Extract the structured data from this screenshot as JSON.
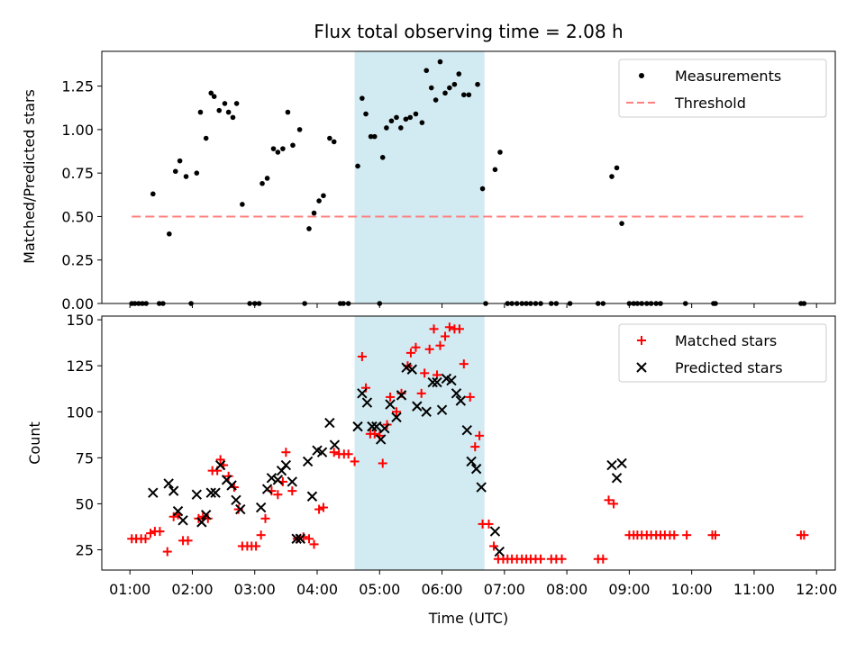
{
  "chart_data": {
    "title": "Flux total observing time = 2.08 h",
    "xlabel": "Time (UTC)",
    "x_unit": "hours UTC",
    "xlim": [
      0.55,
      12.3
    ],
    "xticks": [
      {
        "v": 1,
        "label": "01:00"
      },
      {
        "v": 2,
        "label": "02:00"
      },
      {
        "v": 3,
        "label": "03:00"
      },
      {
        "v": 4,
        "label": "04:00"
      },
      {
        "v": 5,
        "label": "05:00"
      },
      {
        "v": 6,
        "label": "06:00"
      },
      {
        "v": 7,
        "label": "07:00"
      },
      {
        "v": 8,
        "label": "08:00"
      },
      {
        "v": 9,
        "label": "09:00"
      },
      {
        "v": 10,
        "label": "10:00"
      },
      {
        "v": 11,
        "label": "11:00"
      },
      {
        "v": 12,
        "label": "12:00"
      }
    ],
    "observing_window": {
      "start": 4.6,
      "end": 6.68,
      "color": "#add8e6"
    },
    "top": {
      "type": "scatter",
      "ylabel": "Matched/Predicted stars",
      "ylim": [
        0,
        1.45
      ],
      "yticks": [
        {
          "v": 0,
          "label": "0.00"
        },
        {
          "v": 0.25,
          "label": "0.25"
        },
        {
          "v": 0.5,
          "label": "0.50"
        },
        {
          "v": 0.75,
          "label": "0.75"
        },
        {
          "v": 1.0,
          "label": "1.00"
        },
        {
          "v": 1.25,
          "label": "1.25"
        }
      ],
      "legend": [
        {
          "label": "Measurements",
          "kind": "dot",
          "color": "#000000"
        },
        {
          "label": "Threshold",
          "kind": "dash",
          "color": "#ff7f7f"
        }
      ],
      "threshold": {
        "y": 0.5,
        "x_start": 1.03,
        "x_end": 11.8,
        "color": "#ff7f7f"
      },
      "measurements": [
        [
          1.03,
          0
        ],
        [
          1.08,
          0
        ],
        [
          1.14,
          0
        ],
        [
          1.2,
          0
        ],
        [
          1.26,
          0
        ],
        [
          1.37,
          0.63
        ],
        [
          1.47,
          0
        ],
        [
          1.53,
          0
        ],
        [
          1.63,
          0.4
        ],
        [
          1.73,
          0.76
        ],
        [
          1.8,
          0.82
        ],
        [
          1.9,
          0.73
        ],
        [
          1.98,
          0
        ],
        [
          2.07,
          0.75
        ],
        [
          2.13,
          1.1
        ],
        [
          2.22,
          0.95
        ],
        [
          2.3,
          1.21
        ],
        [
          2.35,
          1.19
        ],
        [
          2.43,
          1.11
        ],
        [
          2.52,
          1.15
        ],
        [
          2.58,
          1.1
        ],
        [
          2.65,
          1.07
        ],
        [
          2.71,
          1.15
        ],
        [
          2.8,
          0.57
        ],
        [
          2.92,
          0
        ],
        [
          3.0,
          0
        ],
        [
          3.07,
          0
        ],
        [
          3.12,
          0.69
        ],
        [
          3.2,
          0.72
        ],
        [
          3.3,
          0.89
        ],
        [
          3.37,
          0.87
        ],
        [
          3.45,
          0.89
        ],
        [
          3.53,
          1.1
        ],
        [
          3.61,
          0.91
        ],
        [
          3.72,
          1.0
        ],
        [
          3.8,
          0
        ],
        [
          3.87,
          0.43
        ],
        [
          3.95,
          0.52
        ],
        [
          4.03,
          0.59
        ],
        [
          4.1,
          0.62
        ],
        [
          4.2,
          0.95
        ],
        [
          4.27,
          0.93
        ],
        [
          4.37,
          0
        ],
        [
          4.42,
          0
        ],
        [
          4.5,
          0
        ],
        [
          4.65,
          0.79
        ],
        [
          4.72,
          1.18
        ],
        [
          4.78,
          1.09
        ],
        [
          4.86,
          0.96
        ],
        [
          4.92,
          0.96
        ],
        [
          5.0,
          0
        ],
        [
          5.05,
          0.84
        ],
        [
          5.11,
          1.01
        ],
        [
          5.19,
          1.05
        ],
        [
          5.27,
          1.07
        ],
        [
          5.34,
          1.01
        ],
        [
          5.42,
          1.06
        ],
        [
          5.49,
          1.07
        ],
        [
          5.58,
          1.09
        ],
        [
          5.68,
          1.04
        ],
        [
          5.75,
          1.34
        ],
        [
          5.83,
          1.24
        ],
        [
          5.9,
          1.17
        ],
        [
          5.97,
          1.39
        ],
        [
          6.05,
          1.21
        ],
        [
          6.12,
          1.24
        ],
        [
          6.2,
          1.26
        ],
        [
          6.27,
          1.32
        ],
        [
          6.35,
          1.2
        ],
        [
          6.43,
          1.2
        ],
        [
          6.57,
          1.26
        ],
        [
          6.65,
          0.66
        ],
        [
          6.7,
          0
        ],
        [
          6.85,
          0.77
        ],
        [
          6.93,
          0.87
        ],
        [
          7.05,
          0
        ],
        [
          7.12,
          0
        ],
        [
          7.2,
          0
        ],
        [
          7.28,
          0
        ],
        [
          7.35,
          0
        ],
        [
          7.42,
          0
        ],
        [
          7.5,
          0
        ],
        [
          7.58,
          0
        ],
        [
          7.75,
          0
        ],
        [
          7.83,
          0
        ],
        [
          8.05,
          0
        ],
        [
          8.5,
          0
        ],
        [
          8.58,
          0
        ],
        [
          8.72,
          0.73
        ],
        [
          8.8,
          0.78
        ],
        [
          8.88,
          0.46
        ],
        [
          9.0,
          0
        ],
        [
          9.07,
          0
        ],
        [
          9.13,
          0
        ],
        [
          9.2,
          0
        ],
        [
          9.28,
          0
        ],
        [
          9.35,
          0
        ],
        [
          9.43,
          0
        ],
        [
          9.5,
          0
        ],
        [
          9.9,
          0
        ],
        [
          10.35,
          0
        ],
        [
          10.38,
          0
        ],
        [
          11.75,
          0
        ],
        [
          11.8,
          0
        ]
      ]
    },
    "bottom": {
      "type": "scatter",
      "ylabel": "Count",
      "ylim": [
        14,
        152
      ],
      "yticks": [
        {
          "v": 25,
          "label": "25"
        },
        {
          "v": 50,
          "label": "50"
        },
        {
          "v": 75,
          "label": "75"
        },
        {
          "v": 100,
          "label": "100"
        },
        {
          "v": 125,
          "label": "125"
        },
        {
          "v": 150,
          "label": "150"
        }
      ],
      "legend": [
        {
          "label": "Matched stars",
          "kind": "plus",
          "color": "#ff0000"
        },
        {
          "label": "Predicted stars",
          "kind": "x",
          "color": "#000000"
        }
      ],
      "matched": [
        [
          1.03,
          31
        ],
        [
          1.1,
          31
        ],
        [
          1.18,
          31
        ],
        [
          1.25,
          31
        ],
        [
          1.33,
          34
        ],
        [
          1.4,
          35
        ],
        [
          1.48,
          35
        ],
        [
          1.6,
          24
        ],
        [
          1.7,
          43
        ],
        [
          1.77,
          44
        ],
        [
          1.85,
          30
        ],
        [
          1.93,
          30
        ],
        [
          2.1,
          42
        ],
        [
          2.17,
          43
        ],
        [
          2.25,
          42
        ],
        [
          2.32,
          68
        ],
        [
          2.4,
          68
        ],
        [
          2.45,
          74
        ],
        [
          2.5,
          71
        ],
        [
          2.58,
          65
        ],
        [
          2.67,
          59
        ],
        [
          2.74,
          47
        ],
        [
          2.8,
          27
        ],
        [
          2.88,
          27
        ],
        [
          2.95,
          27
        ],
        [
          3.02,
          27
        ],
        [
          3.1,
          33
        ],
        [
          3.17,
          42
        ],
        [
          3.27,
          57
        ],
        [
          3.37,
          55
        ],
        [
          3.45,
          62
        ],
        [
          3.5,
          78
        ],
        [
          3.6,
          57
        ],
        [
          3.68,
          31
        ],
        [
          3.78,
          32
        ],
        [
          3.87,
          31
        ],
        [
          3.95,
          28
        ],
        [
          4.03,
          47
        ],
        [
          4.1,
          48
        ],
        [
          4.27,
          78
        ],
        [
          4.35,
          77
        ],
        [
          4.43,
          77
        ],
        [
          4.5,
          77
        ],
        [
          4.6,
          73
        ],
        [
          4.72,
          130
        ],
        [
          4.78,
          113
        ],
        [
          4.85,
          88
        ],
        [
          4.92,
          88
        ],
        [
          5.0,
          87
        ],
        [
          5.05,
          72
        ],
        [
          5.12,
          93
        ],
        [
          5.17,
          108
        ],
        [
          5.27,
          100
        ],
        [
          5.35,
          110
        ],
        [
          5.45,
          125
        ],
        [
          5.5,
          132
        ],
        [
          5.58,
          135
        ],
        [
          5.67,
          110
        ],
        [
          5.72,
          121
        ],
        [
          5.8,
          134
        ],
        [
          5.87,
          145
        ],
        [
          5.92,
          120
        ],
        [
          5.97,
          136
        ],
        [
          6.05,
          141
        ],
        [
          6.12,
          146
        ],
        [
          6.2,
          145
        ],
        [
          6.28,
          145
        ],
        [
          6.35,
          126
        ],
        [
          6.45,
          108
        ],
        [
          6.53,
          81
        ],
        [
          6.6,
          87
        ],
        [
          6.65,
          39
        ],
        [
          6.75,
          39
        ],
        [
          6.83,
          27
        ],
        [
          6.9,
          20
        ],
        [
          6.98,
          20
        ],
        [
          7.05,
          20
        ],
        [
          7.12,
          20
        ],
        [
          7.2,
          20
        ],
        [
          7.28,
          20
        ],
        [
          7.35,
          20
        ],
        [
          7.42,
          20
        ],
        [
          7.5,
          20
        ],
        [
          7.58,
          20
        ],
        [
          7.75,
          20
        ],
        [
          7.83,
          20
        ],
        [
          7.92,
          20
        ],
        [
          8.5,
          20
        ],
        [
          8.58,
          20
        ],
        [
          8.67,
          52
        ],
        [
          8.75,
          50
        ],
        [
          9.0,
          33
        ],
        [
          9.07,
          33
        ],
        [
          9.13,
          33
        ],
        [
          9.2,
          33
        ],
        [
          9.28,
          33
        ],
        [
          9.35,
          33
        ],
        [
          9.43,
          33
        ],
        [
          9.5,
          33
        ],
        [
          9.57,
          33
        ],
        [
          9.65,
          33
        ],
        [
          9.72,
          33
        ],
        [
          9.92,
          33
        ],
        [
          10.33,
          33
        ],
        [
          10.38,
          33
        ],
        [
          11.75,
          33
        ],
        [
          11.8,
          33
        ]
      ],
      "predicted": [
        [
          1.37,
          56
        ],
        [
          1.62,
          61
        ],
        [
          1.7,
          57
        ],
        [
          1.77,
          46
        ],
        [
          1.85,
          41
        ],
        [
          2.07,
          55
        ],
        [
          2.15,
          40
        ],
        [
          2.22,
          44
        ],
        [
          2.3,
          56
        ],
        [
          2.37,
          56
        ],
        [
          2.45,
          71
        ],
        [
          2.55,
          63
        ],
        [
          2.63,
          60
        ],
        [
          2.7,
          52
        ],
        [
          2.77,
          47
        ],
        [
          3.1,
          48
        ],
        [
          3.2,
          58
        ],
        [
          3.27,
          64
        ],
        [
          3.37,
          63
        ],
        [
          3.43,
          68
        ],
        [
          3.5,
          71
        ],
        [
          3.6,
          62
        ],
        [
          3.67,
          31
        ],
        [
          3.73,
          31
        ],
        [
          3.85,
          73
        ],
        [
          3.92,
          54
        ],
        [
          4.0,
          79
        ],
        [
          4.08,
          78
        ],
        [
          4.2,
          94
        ],
        [
          4.28,
          82
        ],
        [
          4.65,
          92
        ],
        [
          4.72,
          110
        ],
        [
          4.8,
          105
        ],
        [
          4.88,
          92
        ],
        [
          4.95,
          92
        ],
        [
          5.02,
          85
        ],
        [
          5.08,
          91
        ],
        [
          5.17,
          104
        ],
        [
          5.27,
          97
        ],
        [
          5.35,
          109
        ],
        [
          5.43,
          124
        ],
        [
          5.52,
          123
        ],
        [
          5.6,
          103
        ],
        [
          5.75,
          100
        ],
        [
          5.85,
          116
        ],
        [
          5.92,
          116
        ],
        [
          6.0,
          101
        ],
        [
          6.07,
          118
        ],
        [
          6.15,
          117
        ],
        [
          6.23,
          110
        ],
        [
          6.3,
          106
        ],
        [
          6.4,
          90
        ],
        [
          6.47,
          73
        ],
        [
          6.55,
          69
        ],
        [
          6.63,
          59
        ],
        [
          6.85,
          35
        ],
        [
          6.92,
          24
        ],
        [
          8.72,
          71
        ],
        [
          8.8,
          64
        ],
        [
          8.88,
          72
        ]
      ]
    }
  }
}
